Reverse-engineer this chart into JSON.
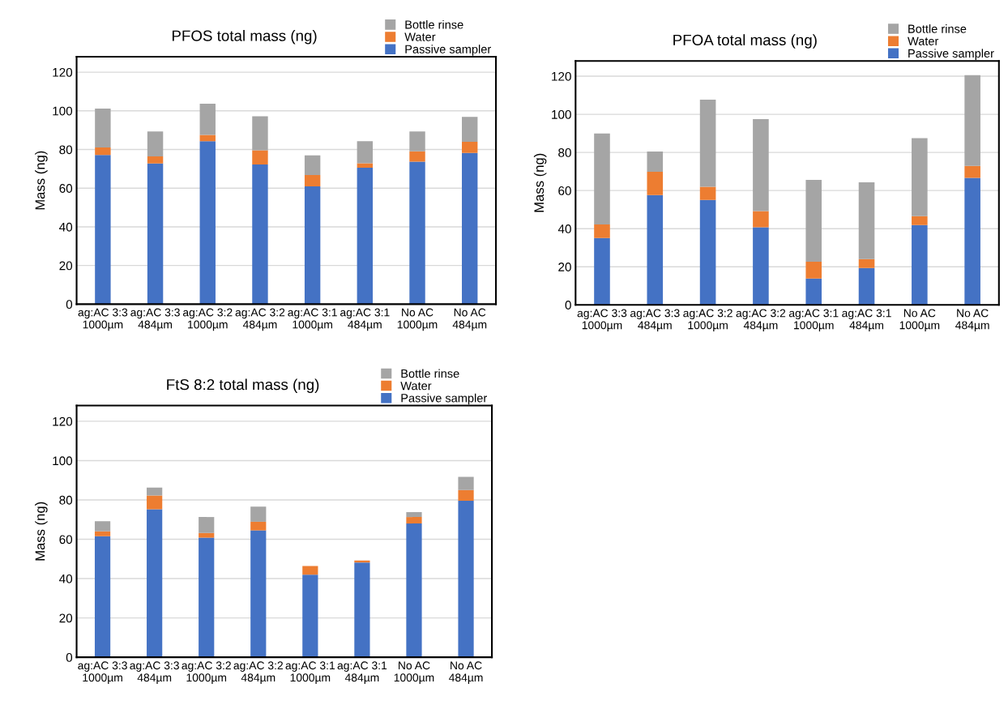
{
  "chart_data": [
    {
      "type": "bar",
      "title": "PFOS total mass (ng)",
      "ylabel": "Mass (ng)",
      "stacked": true,
      "legend": "top right",
      "grid": "y",
      "categories": [
        "ag:AC 3:3\n1000µm",
        "ag:AC 3:3\n484µm",
        "ag:AC 3:2\n1000µm",
        "ag:AC 3:2\n484µm",
        "ag:AC 3:1\n1000µm",
        "ag:AC 3:1\n484µm",
        "No AC\n1000µm",
        "No AC\n484µm"
      ],
      "ylim": [
        0,
        128
      ],
      "yticks": [
        0,
        20,
        40,
        60,
        80,
        100,
        120
      ],
      "series": [
        {
          "name": "Passive sampler",
          "color": "#4472c4",
          "values": [
            77.2,
            72.8,
            84.3,
            72.3,
            60.9,
            70.6,
            73.7,
            78.2
          ]
        },
        {
          "name": "Water",
          "color": "#ed7d31",
          "values": [
            3.9,
            3.6,
            3.3,
            7.3,
            5.9,
            2.3,
            5.4,
            5.8
          ]
        },
        {
          "name": "Bottle rinse",
          "color": "#a5a5a5",
          "values": [
            20.1,
            12.9,
            16.1,
            17.6,
            10.2,
            11.4,
            10.2,
            12.9
          ]
        }
      ]
    },
    {
      "type": "bar",
      "title": "PFOA total mass (ng)",
      "ylabel": "Mass (ng)",
      "stacked": true,
      "legend": "top right",
      "grid": "y",
      "categories": [
        "ag:AC 3:3\n1000µm",
        "ag:AC 3:3\n484µm",
        "ag:AC 3:2\n1000µm",
        "ag:AC 3:2\n484µm",
        "ag:AC 3:1\n1000µm",
        "ag:AC 3:1\n484µm",
        "No AC\n1000µm",
        "No AC\n484µm"
      ],
      "ylim": [
        0,
        128
      ],
      "yticks": [
        0,
        20,
        40,
        60,
        80,
        100,
        120
      ],
      "series": [
        {
          "name": "Passive sampler",
          "color": "#4472c4",
          "values": [
            35.1,
            57.6,
            55.1,
            40.7,
            13.8,
            19.3,
            41.9,
            66.7
          ]
        },
        {
          "name": "Water",
          "color": "#ed7d31",
          "values": [
            7.1,
            12.3,
            6.9,
            8.5,
            8.8,
            4.7,
            4.7,
            6.2
          ]
        },
        {
          "name": "Bottle rinse",
          "color": "#a5a5a5",
          "values": [
            47.7,
            10.6,
            45.7,
            48.3,
            43.0,
            40.3,
            40.9,
            47.7
          ]
        }
      ]
    },
    {
      "type": "bar",
      "title": "FtS 8:2 total mass (ng)",
      "ylabel": "Mass (ng)",
      "stacked": true,
      "legend": "top right",
      "grid": "y",
      "categories": [
        "ag:AC 3:3\n1000µm",
        "ag:AC 3:3\n484µm",
        "ag:AC 3:2\n1000µm",
        "ag:AC 3:2\n484µm",
        "ag:AC 3:1\n1000µm",
        "ag:AC 3:1\n484µm",
        "No AC\n1000µm",
        "No AC\n484µm"
      ],
      "ylim": [
        0,
        128
      ],
      "yticks": [
        0,
        20,
        40,
        60,
        80,
        100,
        120
      ],
      "series": [
        {
          "name": "Passive sampler",
          "color": "#4472c4",
          "values": [
            61.6,
            75.3,
            60.8,
            64.5,
            42.0,
            48.2,
            68.0,
            79.6
          ]
        },
        {
          "name": "Water",
          "color": "#ed7d31",
          "values": [
            2.4,
            7.0,
            2.4,
            4.4,
            4.4,
            1.0,
            3.3,
            5.4
          ]
        },
        {
          "name": "Bottle rinse",
          "color": "#a5a5a5",
          "values": [
            5.2,
            4.0,
            8.1,
            7.7,
            0,
            0,
            2.5,
            6.7
          ]
        }
      ]
    }
  ]
}
